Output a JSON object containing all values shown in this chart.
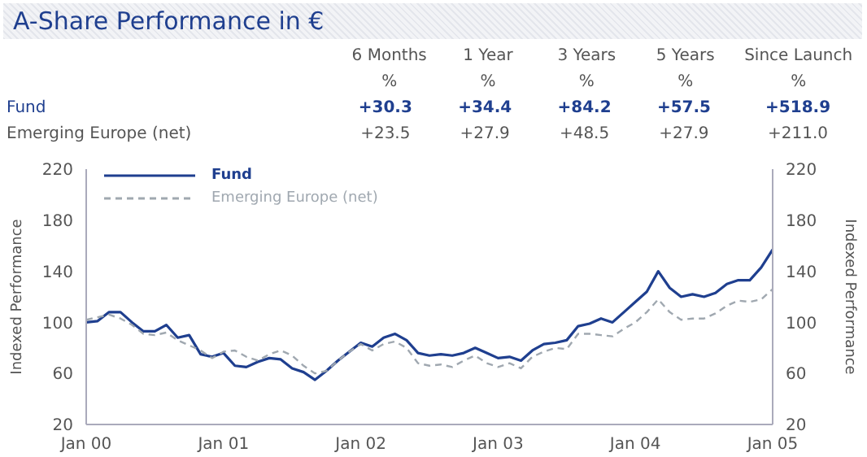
{
  "chart_data": {
    "type": "line",
    "title": "A-Share Performance in €",
    "annotations": [
      "6 Months",
      "1 Year",
      "3 Years",
      "5 Years",
      "Since Launch",
      "%",
      "%",
      "%",
      "%",
      "%",
      "Fund",
      "+30.3",
      "+34.4",
      "+84.2",
      "+57.5",
      "+518.9",
      "Emerging Europe (net)",
      "+23.5",
      "+27.9",
      "+48.5",
      "+27.9",
      "+211.0"
    ],
    "ylabel": "Indexed Performance",
    "y2label": "Indexed Performance",
    "x": [
      "2000-01",
      "2000-02",
      "2000-03",
      "2000-04",
      "2000-05",
      "2000-06",
      "2000-07",
      "2000-08",
      "2000-09",
      "2000-10",
      "2000-11",
      "2000-12",
      "2001-01",
      "2001-02",
      "2001-03",
      "2001-04",
      "2001-05",
      "2001-06",
      "2001-07",
      "2001-08",
      "2001-09",
      "2001-10",
      "2001-11",
      "2001-12",
      "2002-01",
      "2002-02",
      "2002-03",
      "2002-04",
      "2002-05",
      "2002-06",
      "2002-07",
      "2002-08",
      "2002-09",
      "2002-10",
      "2002-11",
      "2002-12",
      "2003-01",
      "2003-02",
      "2003-03",
      "2003-04",
      "2003-05",
      "2003-06",
      "2003-07",
      "2003-08",
      "2003-09",
      "2003-10",
      "2003-11",
      "2003-12",
      "2004-01",
      "2004-02",
      "2004-03",
      "2004-04",
      "2004-05",
      "2004-06",
      "2004-07",
      "2004-08",
      "2004-09",
      "2004-10",
      "2004-11",
      "2004-12",
      "2005-01"
    ],
    "series": [
      {
        "name": "Fund",
        "color": "#1f3f8f",
        "line_style": "solid",
        "values": [
          100,
          101,
          108,
          108,
          100,
          93,
          93,
          98,
          88,
          90,
          75,
          73,
          76,
          66,
          65,
          69,
          72,
          71,
          64,
          61,
          55,
          62,
          70,
          77,
          84,
          81,
          88,
          91,
          86,
          76,
          74,
          75,
          74,
          76,
          80,
          76,
          72,
          73,
          70,
          78,
          83,
          84,
          86,
          97,
          99,
          103,
          100,
          108,
          116,
          124,
          140,
          127,
          120,
          122,
          120,
          123,
          130,
          133,
          133,
          143,
          157
        ]
      },
      {
        "name": "Emerging Europe (net)",
        "color": "#a0a8b0",
        "line_style": "dashed",
        "values": [
          102,
          104,
          106,
          103,
          98,
          91,
          90,
          92,
          86,
          82,
          78,
          72,
          77,
          78,
          73,
          70,
          75,
          78,
          74,
          66,
          60,
          62,
          70,
          77,
          83,
          78,
          83,
          85,
          80,
          68,
          66,
          67,
          65,
          70,
          74,
          68,
          65,
          68,
          64,
          73,
          77,
          80,
          79,
          91,
          91,
          90,
          89,
          95,
          100,
          108,
          118,
          108,
          102,
          103,
          103,
          107,
          113,
          117,
          116,
          118,
          126
        ]
      }
    ],
    "xlim": [
      "2000-01",
      "2005-01"
    ],
    "xticks": [
      {
        "value": "2000-01",
        "label": "Jan 00"
      },
      {
        "value": "2001-01",
        "label": "Jan 01"
      },
      {
        "value": "2002-01",
        "label": "Jan 02"
      },
      {
        "value": "2003-01",
        "label": "Jan 03"
      },
      {
        "value": "2004-01",
        "label": "Jan 04"
      },
      {
        "value": "2005-01",
        "label": "Jan 05"
      }
    ],
    "ylim": [
      20,
      220
    ],
    "yticks": [
      20,
      60,
      100,
      140,
      180,
      220
    ],
    "y2lim": [
      20,
      220
    ],
    "y2ticks": [
      20,
      60,
      100,
      140,
      180,
      220
    ],
    "grid": false,
    "legend": "top left",
    "marker": "none"
  }
}
